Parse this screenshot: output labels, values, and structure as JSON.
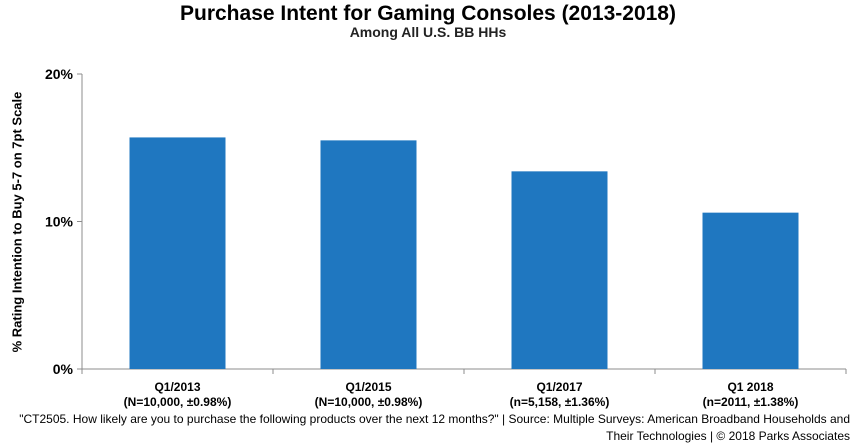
{
  "chart_data": {
    "type": "bar",
    "title": "Purchase Intent for Gaming Consoles (2013-2018)",
    "subtitle": "Among All U.S. BB HHs",
    "ylabel": "% Rating Intention to Buy 5-7 on 7pt Scale",
    "xlabel": "",
    "categories": [
      {
        "line1": "Q1/2013",
        "line2": "(N=10,000, ±0.98%)"
      },
      {
        "line1": "Q1/2015",
        "line2": "(N=10,000, ±0.98%)"
      },
      {
        "line1": "Q1/2017",
        "line2": "(n=5,158, ±1.36%)"
      },
      {
        "line1": "Q1 2018",
        "line2": "(n=2011, ±1.38%)"
      }
    ],
    "values": [
      15.7,
      15.5,
      13.4,
      10.6
    ],
    "ylim": [
      0,
      20
    ],
    "yticks": [
      {
        "value": 0,
        "label": "0%"
      },
      {
        "value": 10,
        "label": "10%"
      },
      {
        "value": 20,
        "label": "20%"
      }
    ],
    "bar_color": "#1f77c0",
    "grid": false,
    "legend": "none"
  },
  "footnote": {
    "line1": "\"CT2505. How likely are you to purchase the following products over the next 12 months?\" | Source: Multiple Surveys: American Broadband Households and",
    "line2": "Their Technologies | © 2018 Parks Associates"
  }
}
